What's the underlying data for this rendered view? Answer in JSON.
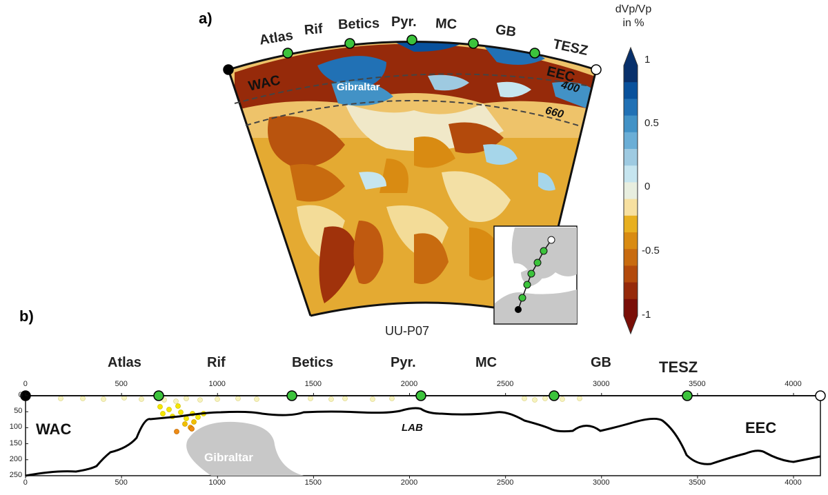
{
  "panel_a": {
    "label": "a)",
    "regions": [
      "Atlas",
      "Rif",
      "Betics",
      "Pyr.",
      "MC",
      "GB",
      "TESZ"
    ],
    "wac_label": "WAC",
    "eec_label": "EEC",
    "gibraltar_label": "Gibraltar",
    "depth_400": "400",
    "depth_660": "660",
    "profile_name": "UU-P07",
    "colorbar": {
      "title_line1": "dVp/Vp",
      "title_line2": "in %",
      "ticks": [
        "1",
        "0.5",
        "0",
        "-0.5",
        "-1"
      ],
      "colors": [
        "#08306b",
        "#08519c",
        "#2171b5",
        "#4292c6",
        "#6baed6",
        "#9ecae1",
        "#c6e5ef",
        "#e8eedf",
        "#f7e0a0",
        "#e8b020",
        "#d98b12",
        "#c86b0f",
        "#b34a0c",
        "#962a0a",
        "#7a0f08"
      ]
    }
  },
  "panel_b": {
    "label": "b)",
    "regions": [
      "Atlas",
      "Rif",
      "Betics",
      "Pyr.",
      "MC",
      "GB",
      "TESZ"
    ],
    "wac_label": "WAC",
    "eec_label": "EEC",
    "gibraltar_label": "Gibraltar",
    "lab_label": "LAB",
    "x_ticks_top": [
      "0",
      "500",
      "1000",
      "1500",
      "2000",
      "2500",
      "3000",
      "3500",
      "4000"
    ],
    "x_ticks_bottom": [
      "0",
      "500",
      "1000",
      "1500",
      "2000",
      "2500",
      "3000",
      "3500",
      "4000"
    ],
    "y_ticks": [
      "0",
      "50",
      "100",
      "150",
      "200",
      "250"
    ]
  },
  "colors": {
    "marker_green": "#3cc33c",
    "marker_black": "#000000",
    "marker_white": "#ffffff",
    "gibraltar_gray": "#c8c8c8",
    "map_land": "#c8c8c8",
    "quake_yellow": "#f5e600",
    "quake_orange": "#ee8b16"
  }
}
